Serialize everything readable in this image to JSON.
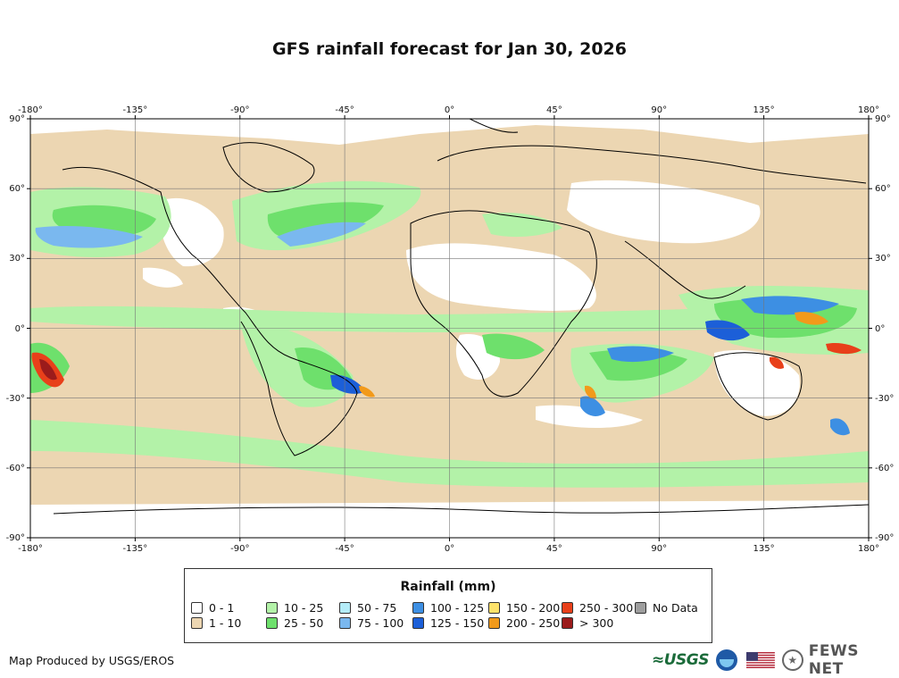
{
  "title": "GFS rainfall forecast for Jan 30, 2026",
  "axes": {
    "longitude_ticks": [
      "-180°",
      "-135°",
      "-90°",
      "-45°",
      "0°",
      "45°",
      "90°",
      "135°",
      "180°"
    ],
    "latitude_ticks": [
      "90°",
      "60°",
      "30°",
      "0°",
      "-30°",
      "-60°",
      "-90°"
    ]
  },
  "legend": {
    "title": "Rainfall (mm)",
    "items": [
      {
        "label": "0 - 1",
        "color": "#ffffff"
      },
      {
        "label": "1 - 10",
        "color": "#ecd6b2"
      },
      {
        "label": "10 - 25",
        "color": "#b3f2a8"
      },
      {
        "label": "25 - 50",
        "color": "#6ee06c"
      },
      {
        "label": "50 - 75",
        "color": "#b4ecf8"
      },
      {
        "label": "75 - 100",
        "color": "#7ab8ef"
      },
      {
        "label": "100 - 125",
        "color": "#3d8fe3"
      },
      {
        "label": "125 - 150",
        "color": "#1c5fd8"
      },
      {
        "label": "150 - 200",
        "color": "#fde26a"
      },
      {
        "label": "200 - 250",
        "color": "#f29a1b"
      },
      {
        "label": "250 - 300",
        "color": "#e8401a"
      },
      {
        "label": "> 300",
        "color": "#9b1b1b"
      },
      {
        "label": "No Data",
        "color": "#9e9e9e"
      }
    ]
  },
  "credit": "Map Produced by USGS/EROS",
  "logos": {
    "usgs": "≈USGS",
    "fews": "FEWS NET"
  }
}
